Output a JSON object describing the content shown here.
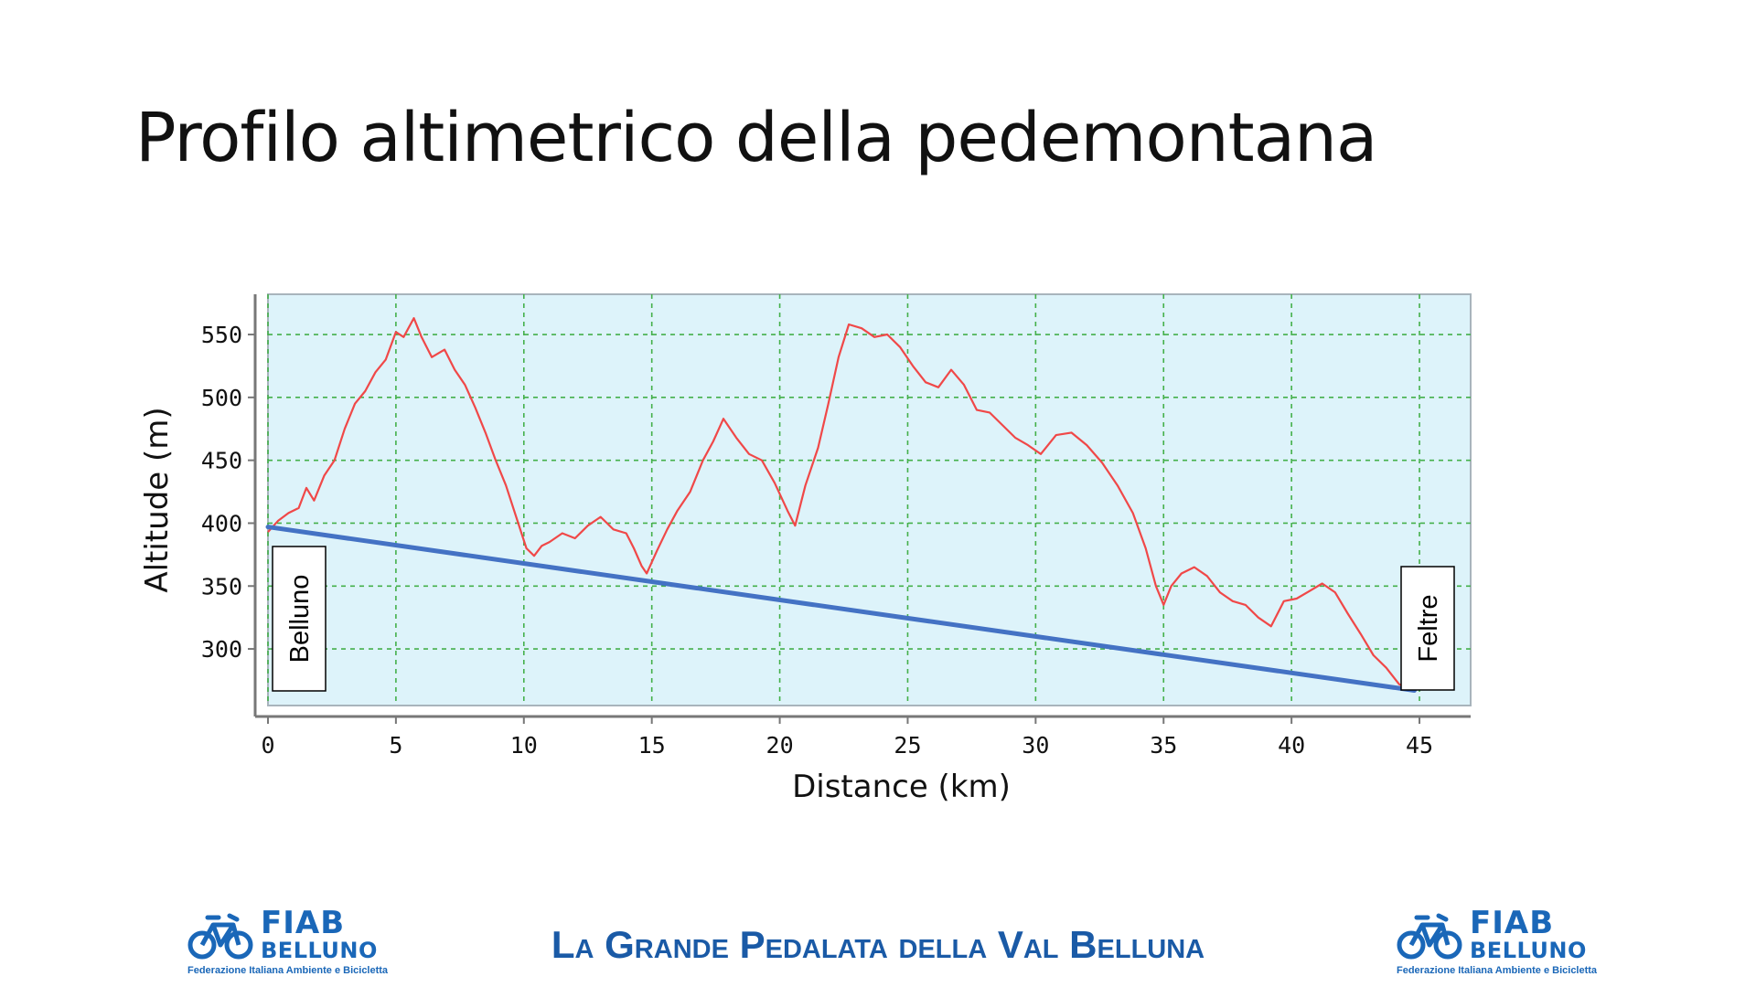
{
  "slide": {
    "title": "Profilo altimetrico della pedemontana",
    "footer_title": "La Grande Pedalata della Val Belluna"
  },
  "logos": {
    "name": "FIAB",
    "city": "BELLUNO",
    "subtitle": "Federazione Italiana Ambiente e Bicicletta",
    "color": "#1a67b8",
    "icon": "bicycle-icon"
  },
  "colors": {
    "plot_bg": "#ddf3fa",
    "grid": "#44b04a",
    "profile": "#f04848",
    "reference_line": "#4472c4",
    "footer": "#1a5aa6"
  },
  "chart_data": {
    "type": "line",
    "title": "",
    "xlabel": "Distance (km)",
    "ylabel": "Altitude (m)",
    "xlim": [
      0,
      47
    ],
    "ylim": [
      255,
      582
    ],
    "xticks": [
      0,
      5,
      10,
      15,
      20,
      25,
      30,
      35,
      40,
      45
    ],
    "yticks": [
      300,
      350,
      400,
      450,
      500,
      550
    ],
    "grid": true,
    "legend": "none",
    "series": [
      {
        "x": [
          0,
          0.4,
          0.8,
          1.2,
          1.5,
          1.8,
          2.2,
          2.6,
          3.0,
          3.4,
          3.8,
          4.2,
          4.6,
          5.0,
          5.3,
          5.7,
          6.0,
          6.4,
          6.9,
          7.3,
          7.7,
          8.1,
          8.5,
          8.9,
          9.3,
          9.7,
          10.1,
          10.4,
          10.7,
          11.0,
          11.5,
          12.0,
          12.5,
          13.0,
          13.5,
          14.0,
          14.3,
          14.6,
          14.8,
          15.2,
          15.6,
          16.0,
          16.5,
          17.0,
          17.4,
          17.8,
          18.3,
          18.8,
          19.3,
          19.8,
          20.3,
          20.6,
          21.0,
          21.5,
          21.9,
          22.3,
          22.7,
          23.2,
          23.7,
          24.2,
          24.7,
          25.2,
          25.7,
          26.2,
          26.7,
          27.2,
          27.7,
          28.2,
          28.7,
          29.2,
          29.7,
          30.2,
          30.8,
          31.4,
          32.0,
          32.6,
          33.2,
          33.8,
          34.3,
          34.7,
          35.0,
          35.3,
          35.7,
          36.2,
          36.7,
          37.2,
          37.7,
          38.2,
          38.7,
          39.2,
          39.7,
          40.2,
          40.7,
          41.2,
          41.7,
          42.2,
          42.7,
          43.2,
          43.7,
          44.2,
          44.6
        ],
        "y": [
          393,
          402,
          408,
          412,
          428,
          418,
          438,
          450,
          475,
          495,
          505,
          520,
          530,
          552,
          548,
          563,
          548,
          532,
          538,
          522,
          510,
          492,
          472,
          450,
          430,
          405,
          380,
          374,
          382,
          385,
          392,
          388,
          398,
          405,
          395,
          392,
          380,
          366,
          360,
          378,
          395,
          410,
          425,
          450,
          465,
          483,
          468,
          455,
          450,
          432,
          410,
          398,
          430,
          460,
          495,
          532,
          558,
          555,
          548,
          550,
          540,
          525,
          512,
          508,
          522,
          510,
          490,
          488,
          478,
          468,
          462,
          455,
          470,
          472,
          462,
          448,
          430,
          408,
          380,
          350,
          335,
          350,
          360,
          365,
          358,
          345,
          338,
          335,
          325,
          318,
          338,
          340,
          346,
          352,
          345,
          328,
          312,
          295,
          285,
          272,
          268
        ]
      },
      {
        "x": [
          0,
          44.8
        ],
        "y": [
          397,
          267
        ]
      }
    ],
    "annotations": [
      {
        "text": "Belluno",
        "x": 0,
        "y": 300
      },
      {
        "text": "Feltre",
        "x": 45,
        "y": 310
      }
    ]
  }
}
